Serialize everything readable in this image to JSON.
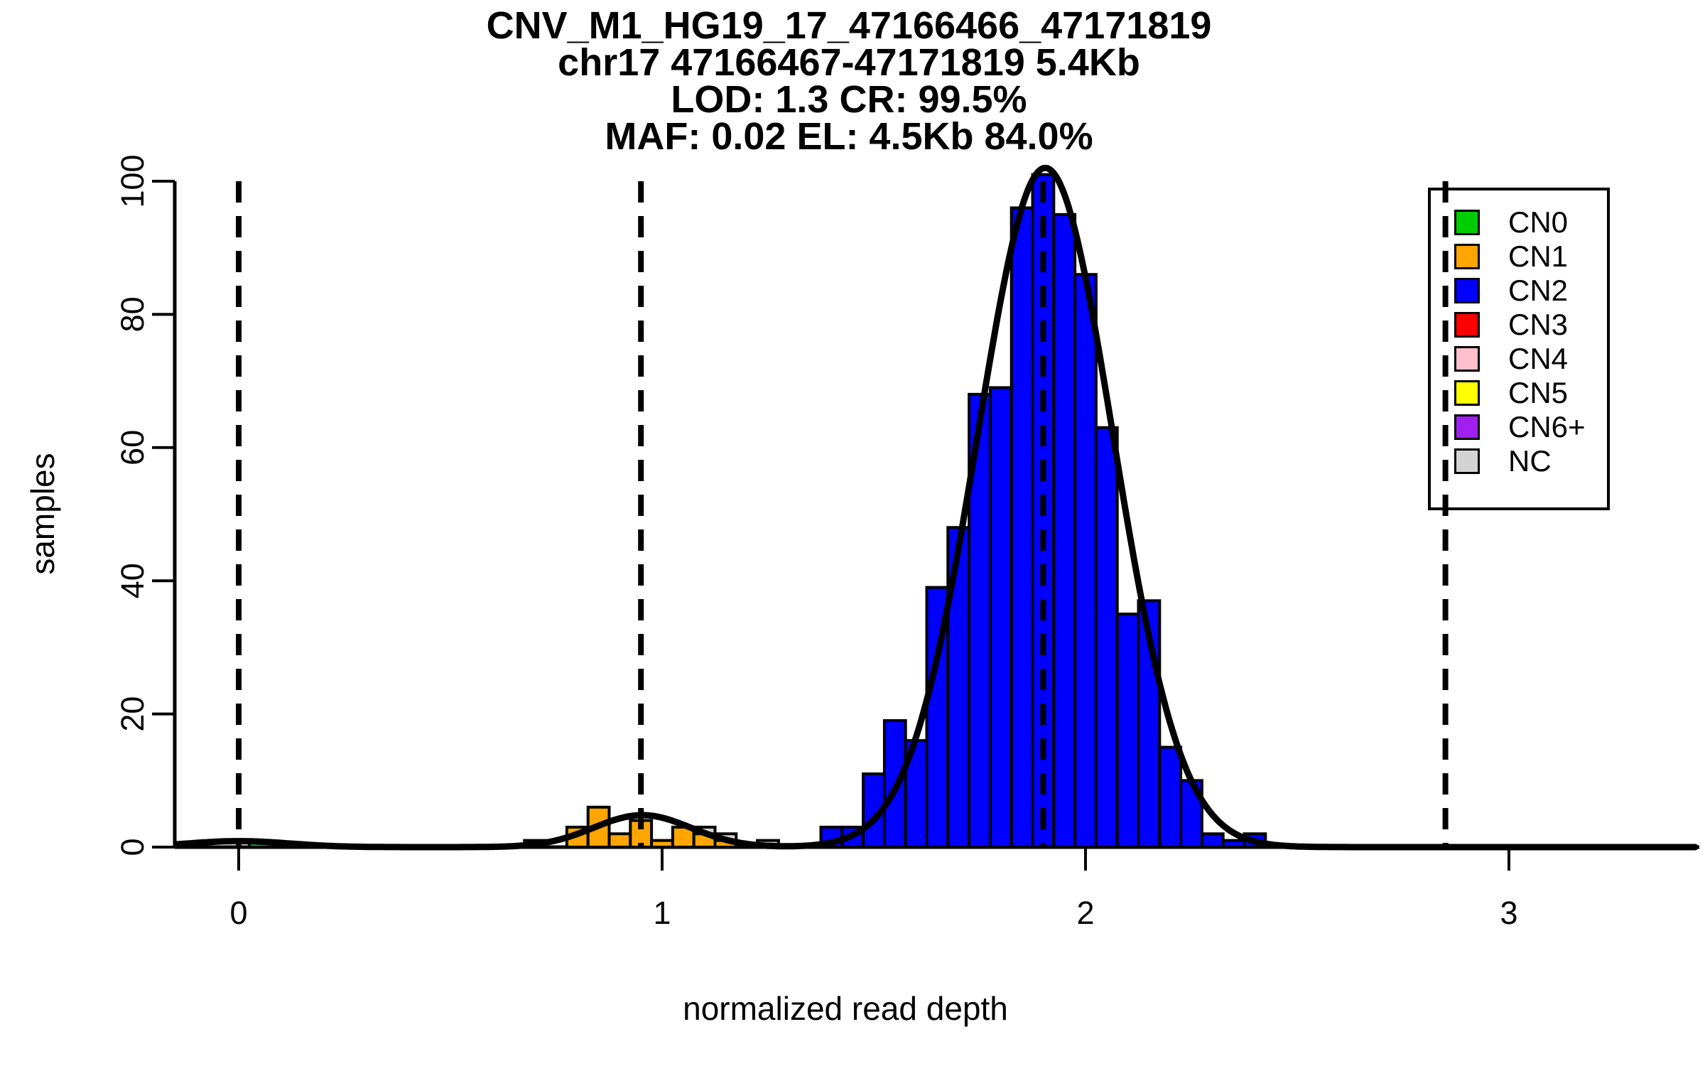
{
  "titles": {
    "lines": [
      "CNV_M1_HG19_17_47166466_47171819",
      "chr17 47166467-47171819 5.4Kb",
      "LOD: 1.3 CR: 99.5%",
      "MAF: 0.02 EL: 4.5Kb 84.0%"
    ]
  },
  "chart_data": {
    "type": "bar",
    "subtype": "histogram",
    "title": "CNV_M1_HG19_17_47166466_47171819",
    "xlabel": "normalized read depth",
    "ylabel": "samples",
    "xlim": [
      -0.15,
      3.45
    ],
    "ylim": [
      0,
      101
    ],
    "x_ticks": [
      0,
      1,
      2,
      3
    ],
    "y_ticks": [
      0,
      20,
      40,
      60,
      80,
      100
    ],
    "grid": false,
    "bin_width": 0.05,
    "series": [
      {
        "name": "NC",
        "color": "#D3D3D3",
        "centers": [
          1.1,
          1.15,
          1.25
        ],
        "heights": [
          3,
          2,
          1
        ]
      },
      {
        "name": "CN1",
        "color": "#FFA500",
        "centers": [
          0.7,
          0.8,
          0.85,
          0.9,
          0.95,
          1.0,
          1.05,
          1.1,
          1.15
        ],
        "heights": [
          1,
          3,
          6,
          2,
          4,
          1,
          3,
          2,
          1
        ]
      },
      {
        "name": "CN0",
        "color": "#00CD00",
        "centers": [
          0.05
        ],
        "heights": [
          1
        ]
      },
      {
        "name": "CN2",
        "color": "#0000FF",
        "centers": [
          1.4,
          1.45,
          1.5,
          1.55,
          1.6,
          1.65,
          1.7,
          1.75,
          1.8,
          1.85,
          1.9,
          1.95,
          2.0,
          2.05,
          2.1,
          2.15,
          2.2,
          2.25,
          2.3,
          2.35,
          2.4
        ],
        "heights": [
          3,
          3,
          11,
          19,
          16,
          39,
          48,
          68,
          69,
          96,
          101,
          95,
          86,
          63,
          35,
          37,
          15,
          10,
          2,
          1,
          2
        ]
      }
    ],
    "dashed_mean_lines_x": [
      0,
      0.95,
      1.9,
      2.85
    ],
    "fit_curve": {
      "components": [
        {
          "amplitude": 0.9,
          "mean": 0.0,
          "sd": 0.12
        },
        {
          "amplitude": 4.8,
          "mean": 0.953,
          "sd": 0.115
        },
        {
          "amplitude": 102,
          "mean": 1.905,
          "sd": 0.16
        }
      ]
    },
    "legend": {
      "position": "top-right",
      "entries": [
        {
          "label": "CN0",
          "color": "#00CD00"
        },
        {
          "label": "CN1",
          "color": "#FFA500"
        },
        {
          "label": "CN2",
          "color": "#0000FF"
        },
        {
          "label": "CN3",
          "color": "#FF0000"
        },
        {
          "label": "CN4",
          "color": "#FFC0CB"
        },
        {
          "label": "CN5",
          "color": "#FFFF00"
        },
        {
          "label": "CN6+",
          "color": "#A020F0"
        },
        {
          "label": "NC",
          "color": "#D3D3D3"
        }
      ]
    }
  }
}
